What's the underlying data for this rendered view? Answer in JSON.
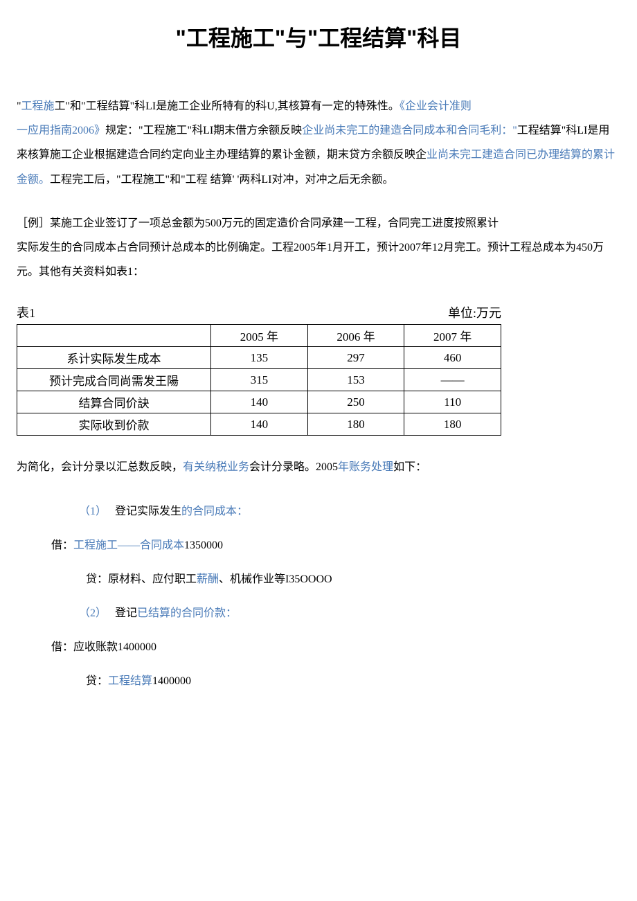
{
  "title": "\"工程施工\"与\"工程结算\"科目",
  "para1": {
    "seg1_plain": "\"",
    "seg2_link": "工程施",
    "seg3_plain": "工\"和\"工程结算\"科LI是施工企业所特有的科U,其核算有一定的特殊性。",
    "seg4_link": "《企业会计准则",
    "seg5_link_line2": "一应用指南2006》",
    "seg6_plain": "规定：\"工程施工\"科LI期末借方余额反映",
    "seg7_link": "企业尚未完工的建造合同成本和合同毛利：\"",
    "seg8_plain": "工程结算\"科LI是用来核算施工企业根据建造合同约定向业主办理结算的累讣金额，期末贷方余额反映企",
    "seg9_link": "业尚未完工建造合同已办理结算的累计金额。",
    "seg10_plain": "工程完工后，\"工程施工\"和\"工程 结算' '两科LI对冲，对冲之后无余额。"
  },
  "para2": {
    "line1": "［例］某施工企业签订了一项总金额为500万元的固定造价合同承建一工程，合同完工进度按照累计",
    "line2": "实际发生的合同成本占合同预计总成本的比例确定。工程2005年1月开工，预计2007年12月完工。预计工程总成本为450万元。其他有关资料如表1："
  },
  "tableMeta": {
    "label": "表1",
    "unit": "单位:万元"
  },
  "table": {
    "headers": [
      "",
      "2005 年",
      "2006 年",
      "2007 年"
    ],
    "rows": [
      {
        "label": "系计实际发生成本",
        "c1": "135",
        "c2": "297",
        "c3": "460"
      },
      {
        "label": "预计完成合同尚需发王陽",
        "c1": "315",
        "c2": "153",
        "c3": "——"
      },
      {
        "label": "结算合同价訣",
        "c1": "140",
        "c2": "250",
        "c3": "110"
      },
      {
        "label": "实际收到价款",
        "c1": "140",
        "c2": "180",
        "c3": "180"
      }
    ]
  },
  "para3": {
    "seg1_plain": "为简化，会计分录以汇总数反映，",
    "seg2_link": "有关纳税业务",
    "seg3_plain": "会计分录略。2005",
    "seg4_link": "年账务处理",
    "seg5_plain": "如下："
  },
  "entries": {
    "e1": {
      "num": "（1）",
      "label_plain": "登记实际发生",
      "label_link": "的合同成本："
    },
    "e1_debit": {
      "prefix": "借：",
      "link": "工程施工——合同成本",
      "amount": "1350000"
    },
    "e1_credit": {
      "prefix": "贷：原材料、应付职工",
      "link": "薪酬",
      "suffix": "、机械作业等I35OOOO"
    },
    "e2": {
      "num": "（2）",
      "label_plain": "登记",
      "label_link": "已结算的合同价款："
    },
    "e2_debit": {
      "text": "借：应收账款1400000"
    },
    "e2_credit": {
      "prefix": "贷：",
      "link": "工程结算",
      "amount": "1400000"
    }
  },
  "colors": {
    "text": "#000000",
    "link": "#4a7bb8",
    "background": "#ffffff",
    "border": "#000000"
  }
}
